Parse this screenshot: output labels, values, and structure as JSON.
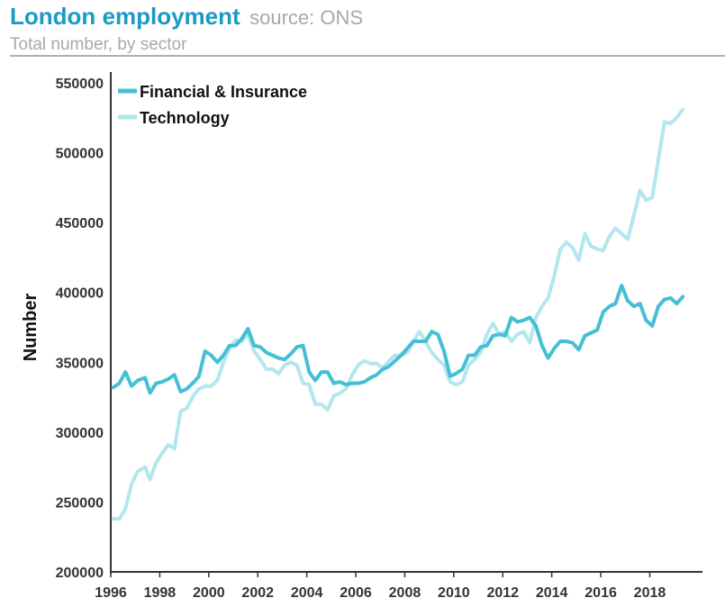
{
  "header": {
    "title": "London employment",
    "source": "source: ONS",
    "subtitle": "Total number, by sector"
  },
  "colors": {
    "title": "#1a9bc4",
    "financial": "#45bfd5",
    "technology": "#b3e7ee",
    "axis": "#333333"
  },
  "chart_data": {
    "type": "line",
    "title": "London employment",
    "subtitle": "Total number, by sector",
    "xlabel": "",
    "ylabel": "Number",
    "xlim": [
      1996,
      2019.6
    ],
    "ylim": [
      200000,
      550000
    ],
    "x_ticks": [
      "1996",
      "1998",
      "2000",
      "2002",
      "2004",
      "2006",
      "2008",
      "2010",
      "2012",
      "2014",
      "2016",
      "2018"
    ],
    "y_ticks": [
      "200000",
      "250000",
      "300000",
      "350000",
      "400000",
      "450000",
      "500000",
      "550000"
    ],
    "legend_position": "top-left",
    "grid": false,
    "series": [
      {
        "name": "Financial & Insurance",
        "color": "#45bfd5",
        "x": [
          1996.1,
          1996.35,
          1996.6,
          1996.85,
          1997.1,
          1997.4,
          1997.6,
          1997.85,
          1998.1,
          1998.35,
          1998.6,
          1998.85,
          1999.1,
          1999.4,
          1999.6,
          1999.85,
          2000.1,
          2000.35,
          2000.6,
          2000.85,
          2001.1,
          2001.35,
          2001.6,
          2001.85,
          2002.1,
          2002.35,
          2002.6,
          2002.85,
          2003.1,
          2003.35,
          2003.6,
          2003.85,
          2004.1,
          2004.35,
          2004.6,
          2004.85,
          2005.1,
          2005.35,
          2005.6,
          2005.85,
          2006.1,
          2006.35,
          2006.6,
          2006.85,
          2007.1,
          2007.35,
          2007.6,
          2007.85,
          2008.1,
          2008.35,
          2008.6,
          2008.85,
          2009.1,
          2009.35,
          2009.6,
          2009.85,
          2010.1,
          2010.35,
          2010.6,
          2010.85,
          2011.1,
          2011.35,
          2011.6,
          2011.85,
          2012.1,
          2012.35,
          2012.6,
          2012.85,
          2013.1,
          2013.35,
          2013.6,
          2013.85,
          2014.1,
          2014.35,
          2014.6,
          2014.85,
          2015.1,
          2015.35,
          2015.6,
          2015.85,
          2016.1,
          2016.35,
          2016.6,
          2016.85,
          2017.1,
          2017.35,
          2017.6,
          2017.85,
          2018.1,
          2018.35,
          2018.6,
          2018.85,
          2019.1,
          2019.35
        ],
        "values": [
          332000,
          335000,
          343000,
          333000,
          337000,
          339000,
          328000,
          335000,
          336000,
          338000,
          341000,
          329000,
          331000,
          336000,
          340000,
          358000,
          355000,
          350000,
          355000,
          362000,
          362000,
          367000,
          374000,
          362000,
          361000,
          357000,
          355000,
          353000,
          352000,
          356000,
          361000,
          362000,
          343000,
          337000,
          343000,
          343000,
          335000,
          336000,
          334000,
          335000,
          335000,
          336000,
          339000,
          341000,
          345000,
          347000,
          351000,
          355000,
          360000,
          365000,
          365000,
          365000,
          372000,
          370000,
          358000,
          340000,
          342000,
          345000,
          355000,
          355000,
          361000,
          362000,
          369000,
          370000,
          369000,
          382000,
          379000,
          380000,
          382000,
          376000,
          362000,
          353000,
          360000,
          365000,
          365000,
          364000,
          359000,
          369000,
          371000,
          373000,
          386000,
          390000,
          392000,
          405000,
          394000,
          390000,
          392000,
          380000,
          376000,
          390000,
          395000,
          396000,
          392000,
          397000
        ]
      },
      {
        "name": "Technology",
        "color": "#b3e7ee",
        "x": [
          1996.1,
          1996.35,
          1996.6,
          1996.85,
          1997.1,
          1997.4,
          1997.6,
          1997.85,
          1998.1,
          1998.35,
          1998.6,
          1998.85,
          1999.1,
          1999.4,
          1999.6,
          1999.85,
          2000.1,
          2000.35,
          2000.6,
          2000.85,
          2001.1,
          2001.35,
          2001.6,
          2001.85,
          2002.1,
          2002.35,
          2002.6,
          2002.85,
          2003.1,
          2003.35,
          2003.6,
          2003.85,
          2004.1,
          2004.35,
          2004.6,
          2004.85,
          2005.1,
          2005.35,
          2005.6,
          2005.85,
          2006.1,
          2006.35,
          2006.6,
          2006.85,
          2007.1,
          2007.35,
          2007.6,
          2007.85,
          2008.1,
          2008.35,
          2008.6,
          2008.85,
          2009.1,
          2009.35,
          2009.6,
          2009.85,
          2010.1,
          2010.35,
          2010.6,
          2010.85,
          2011.1,
          2011.35,
          2011.6,
          2011.85,
          2012.1,
          2012.35,
          2012.6,
          2012.85,
          2013.1,
          2013.35,
          2013.6,
          2013.85,
          2014.1,
          2014.35,
          2014.6,
          2014.85,
          2015.1,
          2015.35,
          2015.6,
          2015.85,
          2016.1,
          2016.35,
          2016.6,
          2016.85,
          2017.1,
          2017.35,
          2017.6,
          2017.85,
          2018.1,
          2018.35,
          2018.6,
          2018.85,
          2019.1,
          2019.35
        ],
        "values": [
          238000,
          238000,
          245000,
          263000,
          272000,
          275000,
          266000,
          278000,
          285000,
          291000,
          288000,
          315000,
          317000,
          327000,
          331000,
          333000,
          333000,
          337000,
          350000,
          360000,
          366000,
          365000,
          370000,
          358000,
          352000,
          345000,
          345000,
          342000,
          348000,
          350000,
          348000,
          335000,
          334000,
          320000,
          320000,
          316000,
          326000,
          328000,
          331000,
          341000,
          348000,
          351000,
          349000,
          349000,
          346000,
          351000,
          355000,
          355000,
          357000,
          365000,
          372000,
          365000,
          357000,
          352000,
          348000,
          336000,
          334000,
          336000,
          348000,
          352000,
          357000,
          370000,
          378000,
          370000,
          372000,
          365000,
          370000,
          372000,
          364000,
          382000,
          390000,
          396000,
          412000,
          431000,
          436000,
          432000,
          423000,
          442000,
          433000,
          431000,
          430000,
          440000,
          446000,
          442000,
          438000,
          455000,
          473000,
          466000,
          468000,
          495000,
          522000,
          521000,
          525000,
          531000
        ]
      }
    ]
  }
}
